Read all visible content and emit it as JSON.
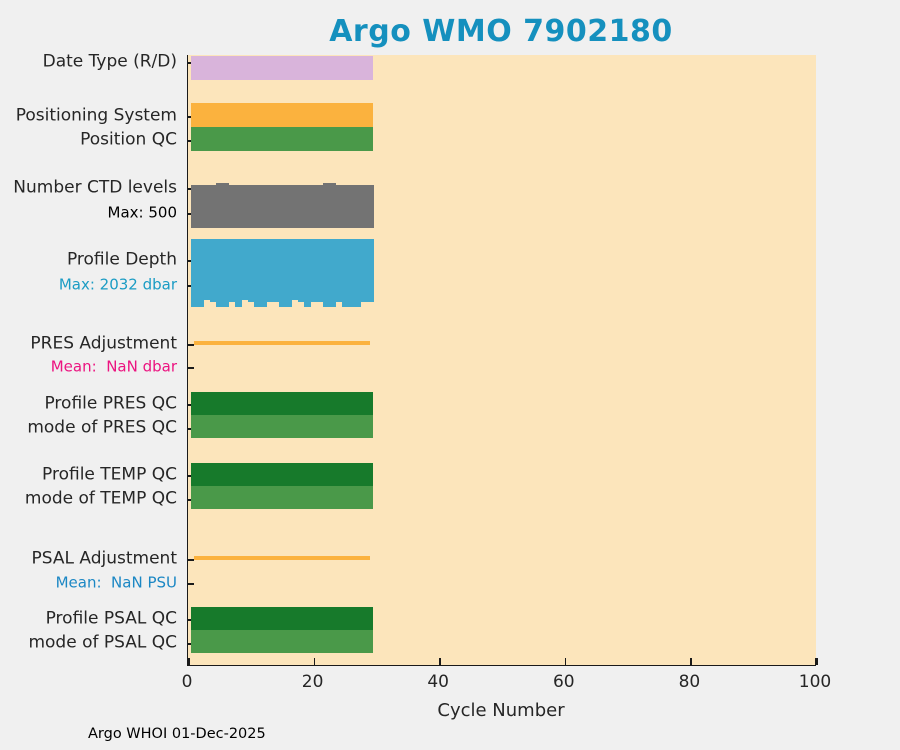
{
  "page": {
    "footer": "Argo WHOI 01-Dec-2025",
    "background": "#f0f0f0"
  },
  "chart_data": {
    "type": "bar",
    "title": "Argo WMO 7902180",
    "title_color": "#1590be",
    "xlabel": "Cycle Number",
    "xlim": [
      0,
      100
    ],
    "xticks": [
      0,
      20,
      40,
      60,
      80,
      100
    ],
    "plot_background": "#fce5bb",
    "axis_color": "#1a1a1a",
    "n_cycles": 29,
    "legend_position": "none",
    "grid": false,
    "rows": [
      {
        "label": "Date Type (R/D)",
        "kind": "band",
        "color": "#d9b4db"
      },
      {
        "label": "Positioning System",
        "kind": "band",
        "color": "#fbb23e"
      },
      {
        "label": "Position QC",
        "kind": "band",
        "color": "#4a9949"
      },
      {
        "label": "Number CTD levels",
        "sublabel": "Max: 500",
        "sublabel_color": "#000000",
        "kind": "cycle-bars-up",
        "color": "#737373",
        "max": 500,
        "values": [
          470,
          470,
          470,
          470,
          500,
          500,
          470,
          470,
          470,
          470,
          470,
          470,
          470,
          470,
          470,
          470,
          470,
          470,
          470,
          470,
          470,
          500,
          500,
          470,
          470,
          470,
          470,
          470,
          470
        ]
      },
      {
        "label": "Profile Depth",
        "sublabel": "Max: 2032 dbar",
        "sublabel_color": "#1b9cc4",
        "kind": "cycle-bars-down",
        "color": "#41a9cc",
        "max": 2032,
        "values": [
          2032,
          2032,
          1820,
          1880,
          2032,
          2032,
          1880,
          2032,
          1820,
          1880,
          2032,
          2032,
          1880,
          1880,
          2032,
          2032,
          1820,
          1880,
          2032,
          1880,
          1880,
          2032,
          2032,
          1880,
          2032,
          2032,
          2032,
          1880,
          1880
        ]
      },
      {
        "label": "PRES Adjustment",
        "sublabel": "Mean:  NaN dbar",
        "sublabel_color": "#ec1380",
        "kind": "line",
        "color": "#fbb23e"
      },
      {
        "label": "Profile PRES QC",
        "kind": "band",
        "color": "#177a2b"
      },
      {
        "label": "mode of PRES QC",
        "kind": "band",
        "color": "#4a9949"
      },
      {
        "label": "Profile TEMP QC",
        "kind": "band",
        "color": "#177a2b"
      },
      {
        "label": "mode of TEMP QC",
        "kind": "band",
        "color": "#4a9949"
      },
      {
        "label": "PSAL Adjustment",
        "sublabel": "Mean:  NaN PSU",
        "sublabel_color": "#1b87c4",
        "kind": "line",
        "color": "#fbb23e"
      },
      {
        "label": "Profile PSAL QC",
        "kind": "band",
        "color": "#177a2b"
      },
      {
        "label": "mode of PSAL QC",
        "kind": "band",
        "color": "#4a9949"
      }
    ]
  }
}
